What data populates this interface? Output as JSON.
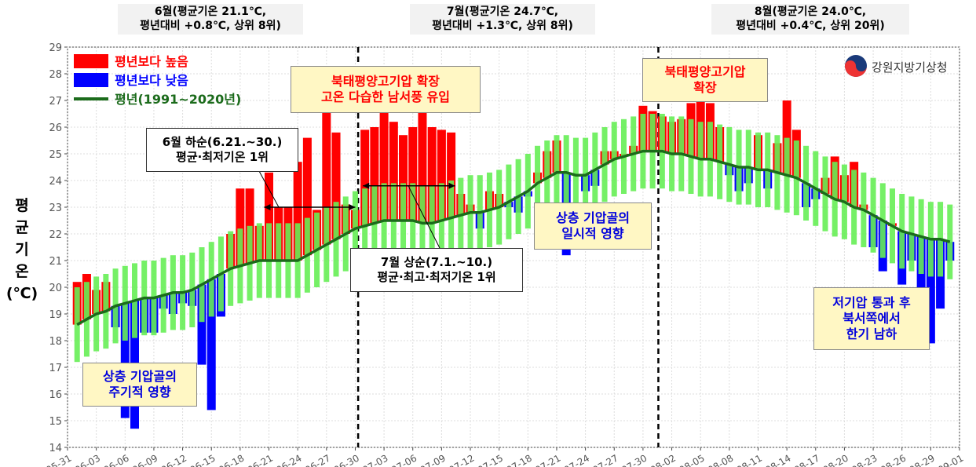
{
  "chart_data": {
    "type": "bar",
    "y_label": [
      "평",
      "균",
      "기",
      "온",
      "(℃)"
    ],
    "logo": "강원지방기상청",
    "categories": [
      "05-31",
      null,
      null,
      "06-03",
      null,
      null,
      "06-06",
      null,
      null,
      "06-09",
      null,
      null,
      "06-12",
      null,
      null,
      "06-15",
      null,
      null,
      "06-18",
      null,
      null,
      "06-21",
      null,
      null,
      "06-24",
      null,
      null,
      "06-27",
      null,
      null,
      "06-30",
      null,
      null,
      "07-03",
      null,
      null,
      "07-06",
      null,
      null,
      "07-09",
      null,
      null,
      "07-12",
      null,
      null,
      "07-15",
      null,
      null,
      "07-18",
      null,
      null,
      "07-21",
      null,
      null,
      "07-24",
      null,
      null,
      "07-27",
      null,
      null,
      "07-30",
      null,
      null,
      "08-02",
      null,
      null,
      "08-05",
      null,
      null,
      "08-08",
      null,
      null,
      "08-11",
      null,
      null,
      "08-14",
      null,
      null,
      "08-17",
      null,
      null,
      "08-20",
      null,
      null,
      "08-23",
      null,
      null,
      "08-26",
      null,
      null,
      "08-29",
      null,
      null,
      "09-01"
    ],
    "values": [
      null,
      20.2,
      20.5,
      19.9,
      20.2,
      18.5,
      15.1,
      14.7,
      18.3,
      18.3,
      19.2,
      19.0,
      19.4,
      19.3,
      17.1,
      15.4,
      18.9,
      22.0,
      23.7,
      23.7,
      22.3,
      24.3,
      23.0,
      23.0,
      24.7,
      25.6,
      22.9,
      26.9,
      25.8,
      23.1,
      22.9,
      25.9,
      26.0,
      27.0,
      26.2,
      25.7,
      26.0,
      26.7,
      26.0,
      25.9,
      25.8,
      23.5,
      23.1,
      22.2,
      23.6,
      23.5,
      23.0,
      22.8,
      23.4,
      24.3,
      25.1,
      25.5,
      21.2,
      24.2,
      23.6,
      23.8,
      25.1,
      25.1,
      25.0,
      25.3,
      26.8,
      26.6,
      26.4,
      26.2,
      26.3,
      26.9,
      27.3,
      26.9,
      26.0,
      24.2,
      23.6,
      23.9,
      25.7,
      23.7,
      25.4,
      27.0,
      25.9,
      23.0,
      23.3,
      24.1,
      24.9,
      24.2,
      24.7,
      23.1,
      21.5,
      20.6,
      22.4,
      20.1,
      21.0,
      18.5,
      17.9,
      19.2,
      21.0,
      null
    ],
    "range_color": "#66ee55",
    "range_low": [
      null,
      17.2,
      17.4,
      17.6,
      17.7,
      17.9,
      18.0,
      18.1,
      18.2,
      18.2,
      18.3,
      18.4,
      18.4,
      18.5,
      18.7,
      18.9,
      19.1,
      19.3,
      19.4,
      19.5,
      19.6,
      19.6,
      19.6,
      19.6,
      19.6,
      19.8,
      20.0,
      20.2,
      20.4,
      20.6,
      20.8,
      20.9,
      21.0,
      21.1,
      21.1,
      21.1,
      21.1,
      21.0,
      21.0,
      21.1,
      21.2,
      21.3,
      21.4,
      21.4,
      21.5,
      21.6,
      21.8,
      22.0,
      22.2,
      22.5,
      22.7,
      22.9,
      22.9,
      22.8,
      22.8,
      23.0,
      23.2,
      23.4,
      23.5,
      23.6,
      23.7,
      23.7,
      23.7,
      23.6,
      23.6,
      23.5,
      23.4,
      23.4,
      23.3,
      23.2,
      23.1,
      23.1,
      23.0,
      23.0,
      22.9,
      22.8,
      22.7,
      22.5,
      22.3,
      22.1,
      21.9,
      21.8,
      21.6,
      21.5,
      21.3,
      21.1,
      20.9,
      20.7,
      20.6,
      20.5,
      20.4,
      20.4,
      20.3,
      null
    ],
    "range_high": [
      null,
      20.0,
      20.2,
      20.4,
      20.5,
      20.7,
      20.8,
      20.9,
      21.0,
      21.0,
      21.1,
      21.2,
      21.2,
      21.3,
      21.5,
      21.7,
      21.9,
      22.1,
      22.2,
      22.3,
      22.4,
      22.4,
      22.4,
      22.4,
      22.4,
      22.6,
      22.8,
      23.0,
      23.2,
      23.4,
      23.6,
      23.7,
      23.8,
      23.9,
      23.9,
      23.9,
      23.9,
      23.8,
      23.8,
      23.9,
      24.0,
      24.1,
      24.2,
      24.2,
      24.3,
      24.4,
      24.6,
      24.8,
      25.0,
      25.3,
      25.5,
      25.7,
      25.7,
      25.6,
      25.6,
      25.8,
      26.0,
      26.2,
      26.3,
      26.4,
      26.5,
      26.5,
      26.5,
      26.4,
      26.4,
      26.3,
      26.2,
      26.2,
      26.1,
      26.0,
      25.9,
      25.9,
      25.8,
      25.8,
      25.7,
      25.6,
      25.5,
      25.3,
      25.1,
      24.9,
      24.7,
      24.6,
      24.4,
      24.3,
      24.1,
      23.9,
      23.7,
      23.5,
      23.4,
      23.3,
      23.2,
      23.2,
      23.1,
      null
    ],
    "series": [
      {
        "name": "평년보다 높음",
        "color": "#ff0000"
      },
      {
        "name": "평년보다 낮음",
        "color": "#0000ff"
      },
      {
        "name": "평년(1991~2020년)",
        "color": "#1b6b1b",
        "values": [
          null,
          18.6,
          18.8,
          19.0,
          19.1,
          19.3,
          19.4,
          19.5,
          19.6,
          19.6,
          19.7,
          19.8,
          19.8,
          19.9,
          20.1,
          20.3,
          20.5,
          20.7,
          20.8,
          20.9,
          21.0,
          21.0,
          21.0,
          21.0,
          21.0,
          21.2,
          21.4,
          21.6,
          21.8,
          22.0,
          22.2,
          22.3,
          22.4,
          22.5,
          22.5,
          22.5,
          22.5,
          22.4,
          22.4,
          22.5,
          22.6,
          22.7,
          22.8,
          22.8,
          22.9,
          23.0,
          23.2,
          23.4,
          23.6,
          23.9,
          24.1,
          24.3,
          24.3,
          24.2,
          24.2,
          24.4,
          24.6,
          24.8,
          24.9,
          25.0,
          25.1,
          25.1,
          25.1,
          25.0,
          25.0,
          24.9,
          24.8,
          24.8,
          24.7,
          24.6,
          24.5,
          24.5,
          24.4,
          24.4,
          24.3,
          24.2,
          24.1,
          23.9,
          23.7,
          23.5,
          23.3,
          23.2,
          23.0,
          22.9,
          22.7,
          22.5,
          22.3,
          22.1,
          22.0,
          21.9,
          21.8,
          21.8,
          21.7,
          null
        ]
      }
    ],
    "ylim": [
      14,
      29
    ],
    "yticks": [
      14,
      15,
      16,
      17,
      18,
      19,
      20,
      21,
      22,
      23,
      24,
      25,
      26,
      27,
      28,
      29
    ],
    "grid": true,
    "legend": "upper left",
    "annotations": [
      {
        "lines": [
          "6월(평균기온 21.1℃,",
          "평년대비 +0.8℃, 상위 8위)"
        ]
      },
      {
        "lines": [
          "7월(평균기온 24.7℃,",
          "평년대비 +1.3℃, 상위 8위)"
        ]
      },
      {
        "lines": [
          "8월(평균기온 24.0℃,",
          "평년대비 +0.4℃, 상위 20위)"
        ]
      },
      {
        "lines": [
          "북태평양고기압 확장",
          "고온 다습한 남서풍 유입"
        ]
      },
      {
        "lines": [
          "6월 하순(6.21.~30.)",
          "평균·최저기온 1위"
        ]
      },
      {
        "lines": [
          "7월 상순(7.1.~10.)",
          "평균·최고·최저기온 1위"
        ]
      },
      {
        "lines": [
          "상층 기압골의",
          "일시적 영향"
        ]
      },
      {
        "lines": [
          "북태평양고기압",
          "확장"
        ]
      },
      {
        "lines": [
          "저기압 통과 후",
          "북서쪽에서",
          "한기 남하"
        ]
      },
      {
        "lines": [
          "상층 기압골의",
          "주기적 영향"
        ]
      }
    ]
  }
}
